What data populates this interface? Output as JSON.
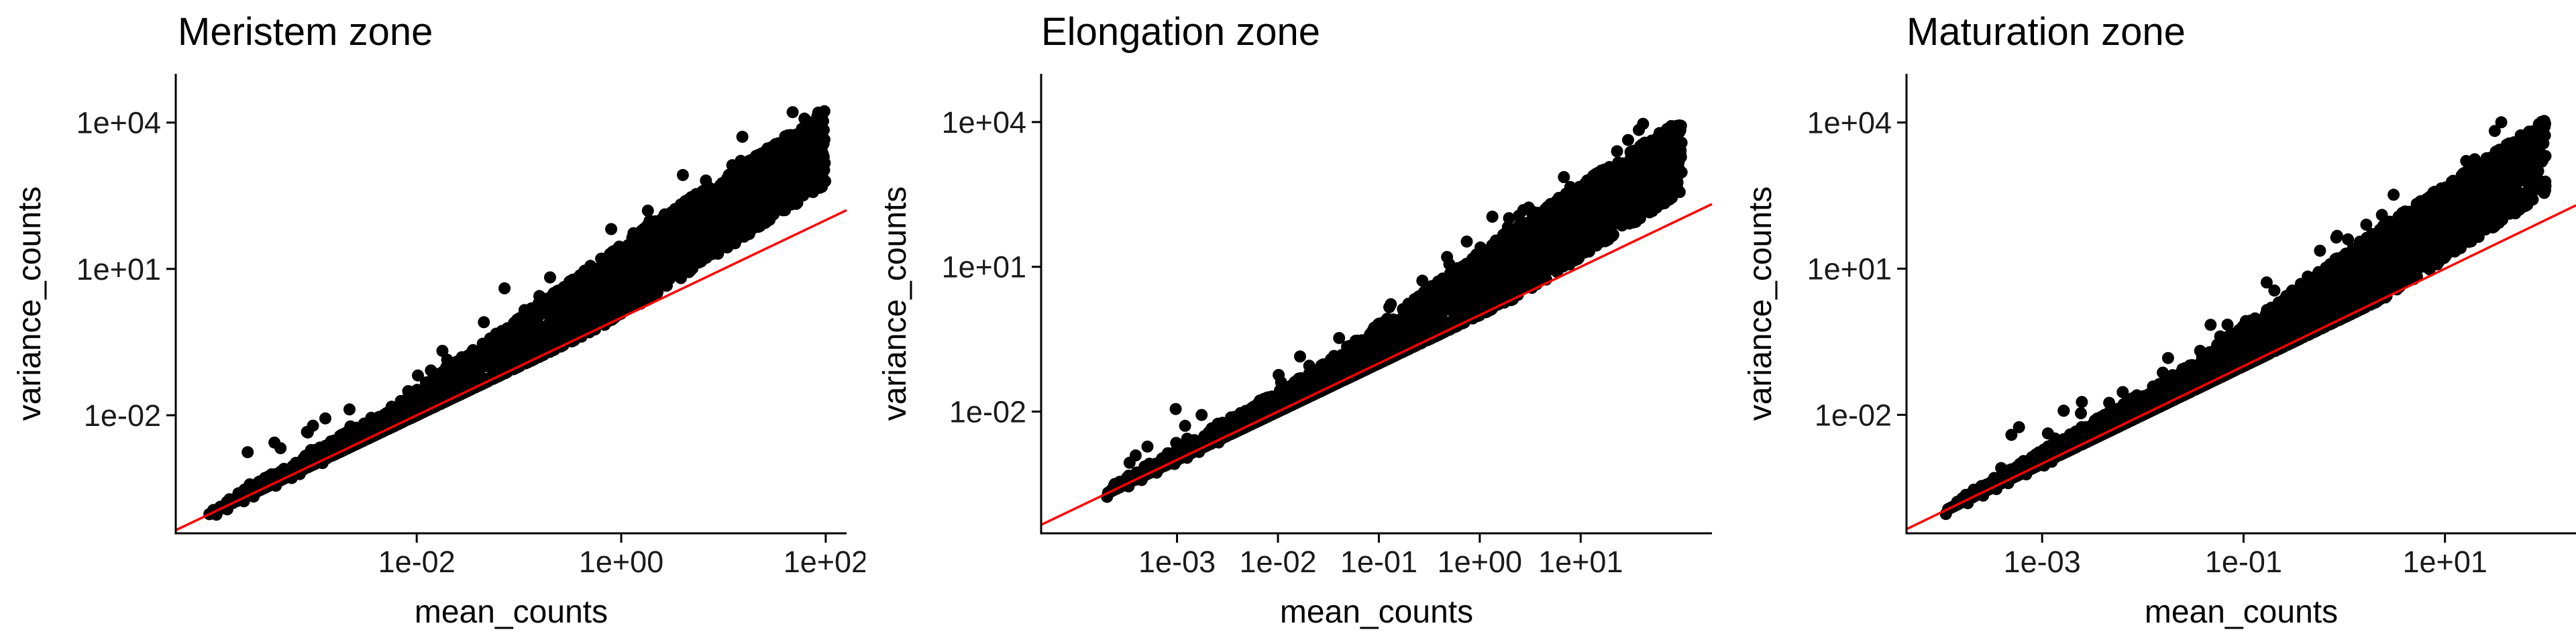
{
  "colors": {
    "points": "#000000",
    "reference_line": "#ff0000",
    "axis": "#000000",
    "background": "#ffffff"
  },
  "chart_data": [
    {
      "type": "scatter",
      "title": "Meristem zone",
      "xlabel": "mean_counts",
      "ylabel": "variance_counts",
      "log_x": true,
      "log_y": true,
      "grid": false,
      "xlim": [
        4.4e-05,
        160
      ],
      "ylim": [
        3.8e-05,
        100000
      ],
      "x_ticks": [
        {
          "value": 0.01,
          "label": "1e-02"
        },
        {
          "value": 1,
          "label": "1e+00"
        },
        {
          "value": 100,
          "label": "1e+02"
        }
      ],
      "y_ticks": [
        {
          "value": 0.01,
          "label": "1e-02"
        },
        {
          "value": 10,
          "label": "1e+01"
        },
        {
          "value": 10000,
          "label": "1e+04"
        }
      ],
      "reference_line": {
        "description": "y = x",
        "slope": 1,
        "intercept": 0
      },
      "x_span": [
        9e-05,
        100
      ],
      "trend": {
        "log_slope_low": 1.05,
        "log_slope_high": 1.35,
        "knee_log_x": -2.2,
        "upper_excess": 0.9
      }
    },
    {
      "type": "scatter",
      "title": "Elongation zone",
      "xlabel": "mean_counts",
      "ylabel": "variance_counts",
      "log_x": true,
      "log_y": true,
      "grid": false,
      "xlim": [
        4.5e-05,
        200
      ],
      "ylim": [
        3e-05,
        100000
      ],
      "x_ticks": [
        {
          "value": 0.001,
          "label": "1e-03"
        },
        {
          "value": 0.01,
          "label": "1e-02"
        },
        {
          "value": 0.1,
          "label": "1e-01"
        },
        {
          "value": 1,
          "label": "1e+00"
        },
        {
          "value": 10,
          "label": "1e+01"
        }
      ],
      "y_ticks": [
        {
          "value": 0.01,
          "label": "1e-02"
        },
        {
          "value": 10,
          "label": "1e+01"
        },
        {
          "value": 10000,
          "label": "1e+04"
        }
      ],
      "reference_line": {
        "description": "y = x",
        "slope": 1,
        "intercept": 0
      },
      "x_span": [
        0.0002,
        100
      ],
      "trend": {
        "log_slope_low": 1.05,
        "log_slope_high": 1.35,
        "knee_log_x": -1.6,
        "upper_excess": 0.9
      }
    },
    {
      "type": "scatter",
      "title": "Maturation zone",
      "xlabel": "mean_counts",
      "ylabel": "variance_counts",
      "log_x": true,
      "log_y": true,
      "grid": false,
      "xlim": [
        4.5e-05,
        200
      ],
      "ylim": [
        3.7e-05,
        100000
      ],
      "x_ticks": [
        {
          "value": 0.001,
          "label": "1e-03"
        },
        {
          "value": 0.1,
          "label": "1e-01"
        },
        {
          "value": 10,
          "label": "1e+01"
        }
      ],
      "y_ticks": [
        {
          "value": 0.01,
          "label": "1e-02"
        },
        {
          "value": 10,
          "label": "1e+01"
        },
        {
          "value": 10000,
          "label": "1e+04"
        }
      ],
      "reference_line": {
        "description": "y = x",
        "slope": 1,
        "intercept": 0
      },
      "x_span": [
        0.00011,
        100
      ],
      "trend": {
        "log_slope_low": 1.05,
        "log_slope_high": 1.35,
        "knee_log_x": -1.6,
        "upper_excess": 0.9
      }
    }
  ]
}
